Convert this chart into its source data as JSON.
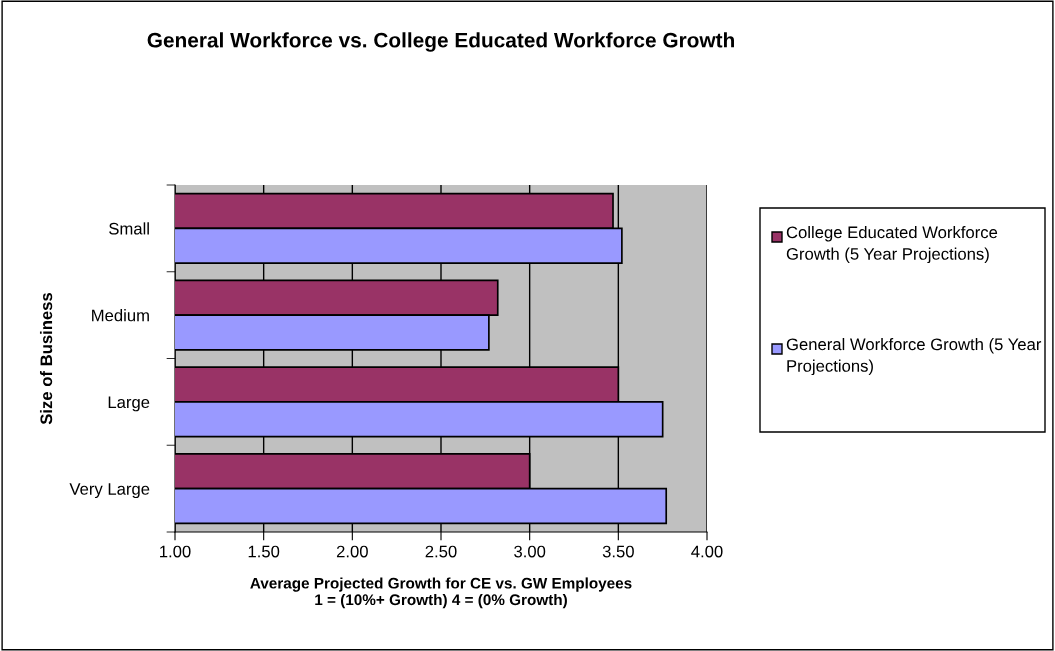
{
  "chart_data": {
    "type": "bar",
    "orientation": "horizontal",
    "title": "General Workforce vs. College Educated Workforce Growth",
    "xlabel": "Average Projected Growth for CE vs. GW Employees\n1 = (10%+ Growth) 4 = (0% Growth)",
    "ylabel": "Size of Business",
    "categories": [
      "Small",
      "Medium",
      "Large",
      "Very Large"
    ],
    "series": [
      {
        "name": "College Educated Workforce Growth (5 Year Projections)",
        "color": "#993366",
        "values": [
          3.47,
          2.82,
          3.5,
          3.0
        ]
      },
      {
        "name": "General Workforce Growth (5 Year Projections)",
        "color": "#9999ff",
        "values": [
          3.52,
          2.77,
          3.75,
          3.77
        ]
      }
    ],
    "xlim": [
      1,
      4
    ],
    "xticks": [
      {
        "value": 1,
        "label": "1.00"
      },
      {
        "value": 1.5,
        "label": "1.50"
      },
      {
        "value": 2,
        "label": "2.00"
      },
      {
        "value": 2.5,
        "label": "2.50"
      },
      {
        "value": 3,
        "label": "3.00"
      },
      {
        "value": 3.5,
        "label": "3.50"
      },
      {
        "value": 4,
        "label": "4.00"
      }
    ],
    "grid": "x",
    "legend": "right"
  }
}
